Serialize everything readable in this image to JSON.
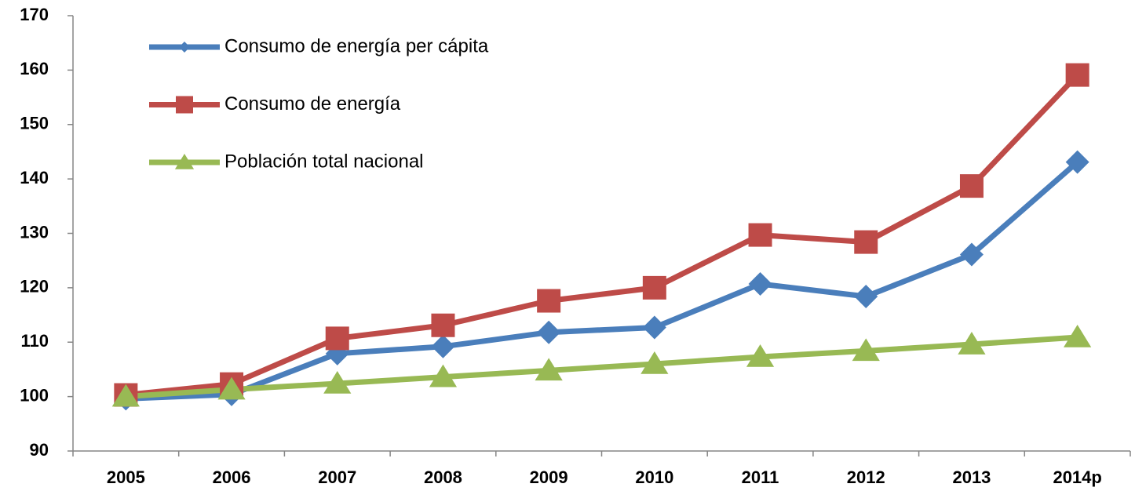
{
  "chart_data": {
    "type": "line",
    "categories": [
      "2005",
      "2006",
      "2007",
      "2008",
      "2009",
      "2010",
      "2011",
      "2012",
      "2013",
      "2014p"
    ],
    "series": [
      {
        "name": "Consumo de energía per cápita",
        "color": "#4a7ebb",
        "marker": "diamond",
        "values": [
          99.6,
          100.4,
          107.9,
          109.2,
          111.8,
          112.7,
          120.7,
          118.4,
          126.1,
          143.1
        ]
      },
      {
        "name": "Consumo de energía",
        "color": "#be4b48",
        "marker": "square",
        "values": [
          100.3,
          102.3,
          110.7,
          113.1,
          117.6,
          120.0,
          129.7,
          128.4,
          138.7,
          159.1
        ]
      },
      {
        "name": "Población total nacional",
        "color": "#98b954",
        "marker": "triangle",
        "values": [
          100.0,
          101.3,
          102.4,
          103.6,
          104.8,
          106.0,
          107.3,
          108.4,
          109.6,
          110.9
        ]
      }
    ],
    "ylim": [
      90,
      170
    ],
    "yticks": [
      90,
      100,
      110,
      120,
      130,
      140,
      150,
      160,
      170
    ],
    "grid": false,
    "legend": "top-left"
  }
}
